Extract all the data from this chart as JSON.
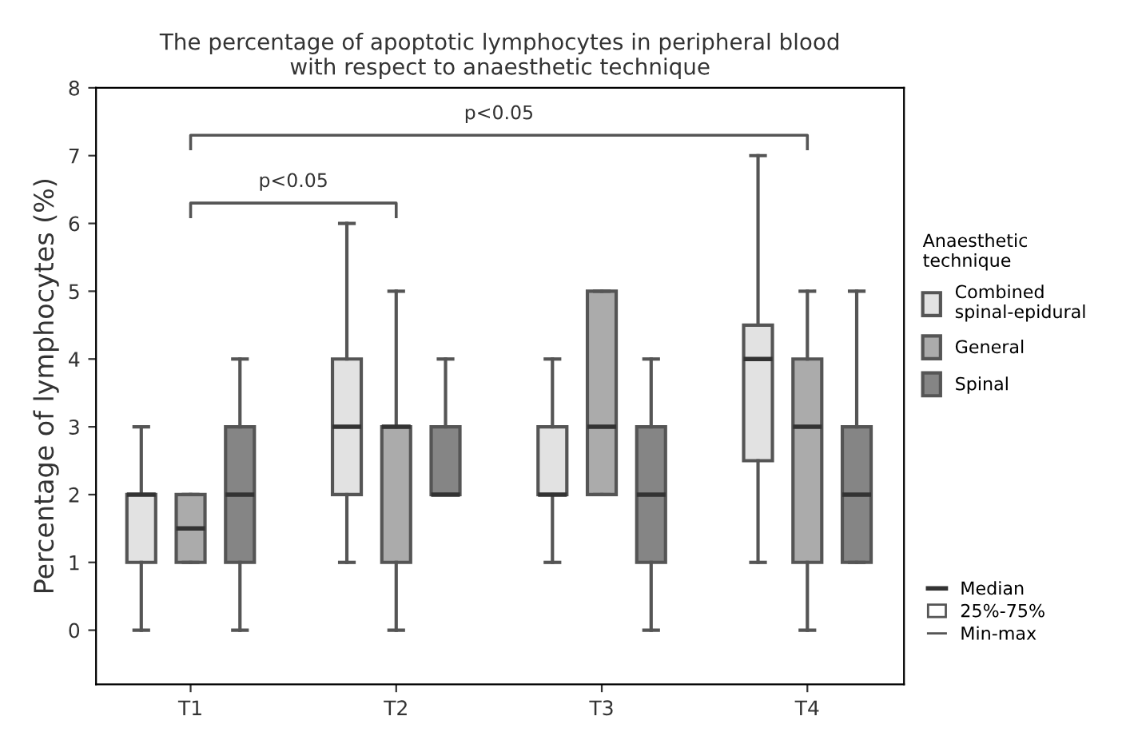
{
  "chart_data": {
    "type": "box",
    "title": "The percentage of apoptotic lymphocytes in peripheral blood\nwith respect to anaesthetic technique",
    "ylabel": "Percentage of lymphocytes (%)",
    "legend_title": "Anaesthetic\ntechnique",
    "categories": [
      "T1",
      "T2",
      "T3",
      "T4"
    ],
    "ylim": [
      -0.8,
      8
    ],
    "yticks": [
      0,
      1,
      2,
      3,
      4,
      5,
      6,
      7,
      8
    ],
    "grid": false,
    "legend": "right",
    "series": [
      {
        "name": "Combined\nspinal-epidural",
        "color": "#e2e2e2",
        "boxes": [
          {
            "low": 0,
            "q1": 1,
            "median": 2,
            "q3": 2,
            "high": 3
          },
          {
            "low": 1,
            "q1": 2,
            "median": 3,
            "q3": 4,
            "high": 6
          },
          {
            "low": 1,
            "q1": 2,
            "median": 2,
            "q3": 3,
            "high": 4
          },
          {
            "low": 1,
            "q1": 2.5,
            "median": 4,
            "q3": 4.5,
            "high": 7
          }
        ]
      },
      {
        "name": "General",
        "color": "#ababab",
        "boxes": [
          {
            "low": 1,
            "q1": 1,
            "median": 1.5,
            "q3": 2,
            "high": 2
          },
          {
            "low": 0,
            "q1": 1,
            "median": 3,
            "q3": 3,
            "high": 5
          },
          {
            "low": 2,
            "q1": 2,
            "median": 3,
            "q3": 5,
            "high": 5
          },
          {
            "low": 0,
            "q1": 1,
            "median": 3,
            "q3": 4,
            "high": 5
          }
        ]
      },
      {
        "name": "Spinal",
        "color": "#858585",
        "boxes": [
          {
            "low": 0,
            "q1": 1,
            "median": 2,
            "q3": 3,
            "high": 4
          },
          {
            "low": 2,
            "q1": 2,
            "median": 2,
            "q3": 3,
            "high": 4
          },
          {
            "low": 0,
            "q1": 1,
            "median": 2,
            "q3": 3,
            "high": 4
          },
          {
            "low": 1,
            "q1": 1,
            "median": 2,
            "q3": 3,
            "high": 5
          }
        ]
      }
    ],
    "annotations": [
      "p<0.05",
      "p<0.05",
      "Median",
      "25%-75%",
      "Min-max"
    ]
  }
}
